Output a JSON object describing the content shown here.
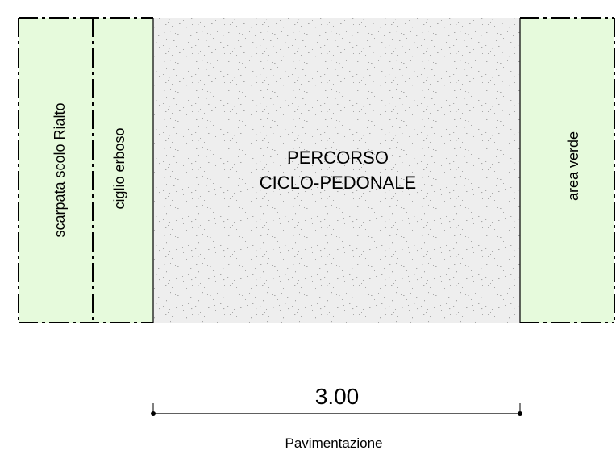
{
  "zones": {
    "scarpata": {
      "label": "scarpata scolo Rialto",
      "fill": "#e6fadc"
    },
    "ciglio": {
      "label": "ciglio erboso",
      "fill": "#e6fadc"
    },
    "percorso": {
      "line1": "PERCORSO",
      "line2": "CICLO-PEDONALE",
      "fill": "#eeeeee"
    },
    "area_verde": {
      "label": "area verde",
      "fill": "#e6fadc"
    }
  },
  "dimension": {
    "value": "3.00",
    "caption": "Pavimentazione"
  },
  "colors": {
    "green_fill": "#e6fadc",
    "paving_fill": "#eeeeee",
    "stroke": "#000000"
  }
}
